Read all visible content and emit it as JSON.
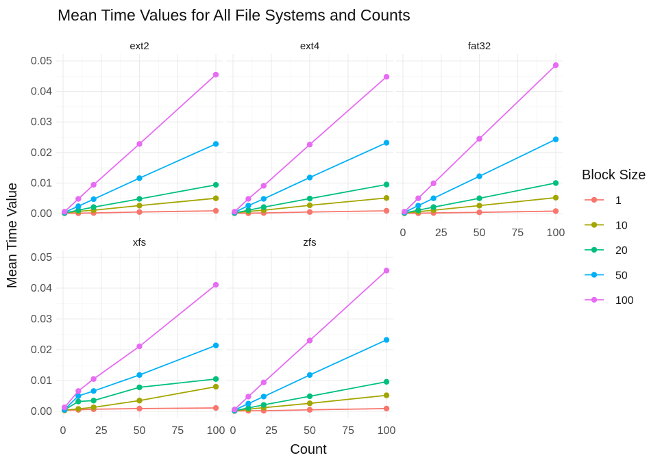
{
  "chart_data": {
    "type": "line",
    "title": "Mean Time Values for All File Systems and Counts",
    "xlabel": "Count",
    "ylabel": "Mean Time Value",
    "x": [
      1,
      10,
      20,
      50,
      100
    ],
    "xticks": [
      "0",
      "25",
      "50",
      "75",
      "100"
    ],
    "yticks": [
      "0.00",
      "0.01",
      "0.02",
      "0.03",
      "0.04",
      "0.05"
    ],
    "xlim": [
      0,
      100
    ],
    "ylim": [
      0,
      0.05
    ],
    "grid": true,
    "legend": {
      "title": "Block Size",
      "placement": "right",
      "entries": [
        "1",
        "10",
        "20",
        "50",
        "100"
      ]
    },
    "colors": {
      "1": "#F8766D",
      "10": "#A3A500",
      "20": "#00BF7D",
      "50": "#00B0F6",
      "100": "#E76BF3"
    },
    "panels": [
      {
        "name": "ext2",
        "series": [
          {
            "name": "1",
            "values": [
              0.0001,
              0.0001,
              0.0002,
              0.0005,
              0.0009
            ]
          },
          {
            "name": "10",
            "values": [
              0.0002,
              0.0007,
              0.0011,
              0.0026,
              0.005
            ]
          },
          {
            "name": "20",
            "values": [
              0.0002,
              0.0011,
              0.0021,
              0.0048,
              0.0094
            ]
          },
          {
            "name": "50",
            "values": [
              0.0004,
              0.0024,
              0.0047,
              0.0116,
              0.0228
            ]
          },
          {
            "name": "100",
            "values": [
              0.0006,
              0.0048,
              0.0094,
              0.0228,
              0.0455
            ]
          }
        ]
      },
      {
        "name": "ext4",
        "series": [
          {
            "name": "1",
            "values": [
              0.0001,
              0.0001,
              0.0002,
              0.0005,
              0.0009
            ]
          },
          {
            "name": "10",
            "values": [
              0.0002,
              0.0007,
              0.0011,
              0.0027,
              0.0051
            ]
          },
          {
            "name": "20",
            "values": [
              0.0002,
              0.0011,
              0.0021,
              0.0049,
              0.0095
            ]
          },
          {
            "name": "50",
            "values": [
              0.0004,
              0.0026,
              0.0048,
              0.0118,
              0.0232
            ]
          },
          {
            "name": "100",
            "values": [
              0.0006,
              0.0048,
              0.0091,
              0.0226,
              0.0448
            ]
          }
        ]
      },
      {
        "name": "fat32",
        "series": [
          {
            "name": "1",
            "values": [
              0.0001,
              0.0001,
              0.0002,
              0.0004,
              0.0008
            ]
          },
          {
            "name": "10",
            "values": [
              0.0002,
              0.0006,
              0.0011,
              0.0026,
              0.0052
            ]
          },
          {
            "name": "20",
            "values": [
              0.0002,
              0.0011,
              0.0021,
              0.005,
              0.01
            ]
          },
          {
            "name": "50",
            "values": [
              0.0004,
              0.0026,
              0.005,
              0.0122,
              0.0243
            ]
          },
          {
            "name": "100",
            "values": [
              0.0006,
              0.005,
              0.0099,
              0.0245,
              0.0486
            ]
          }
        ]
      },
      {
        "name": "xfs",
        "series": [
          {
            "name": "1",
            "values": [
              0.0003,
              0.0005,
              0.0007,
              0.0009,
              0.0011
            ]
          },
          {
            "name": "10",
            "values": [
              0.0004,
              0.0008,
              0.0013,
              0.0035,
              0.008
            ]
          },
          {
            "name": "20",
            "values": [
              0.0005,
              0.0032,
              0.0035,
              0.0078,
              0.0105
            ]
          },
          {
            "name": "50",
            "values": [
              0.0006,
              0.005,
              0.0066,
              0.0118,
              0.0214
            ]
          },
          {
            "name": "100",
            "values": [
              0.0013,
              0.0066,
              0.0105,
              0.0211,
              0.0411
            ]
          }
        ]
      },
      {
        "name": "zfs",
        "series": [
          {
            "name": "1",
            "values": [
              0.0001,
              0.0002,
              0.0002,
              0.0005,
              0.0009
            ]
          },
          {
            "name": "10",
            "values": [
              0.0002,
              0.0007,
              0.0012,
              0.0026,
              0.0052
            ]
          },
          {
            "name": "20",
            "values": [
              0.0002,
              0.0011,
              0.0021,
              0.0049,
              0.0096
            ]
          },
          {
            "name": "50",
            "values": [
              0.0004,
              0.0025,
              0.0048,
              0.0118,
              0.0232
            ]
          },
          {
            "name": "100",
            "values": [
              0.0006,
              0.0048,
              0.0094,
              0.023,
              0.0457
            ]
          }
        ]
      }
    ]
  }
}
